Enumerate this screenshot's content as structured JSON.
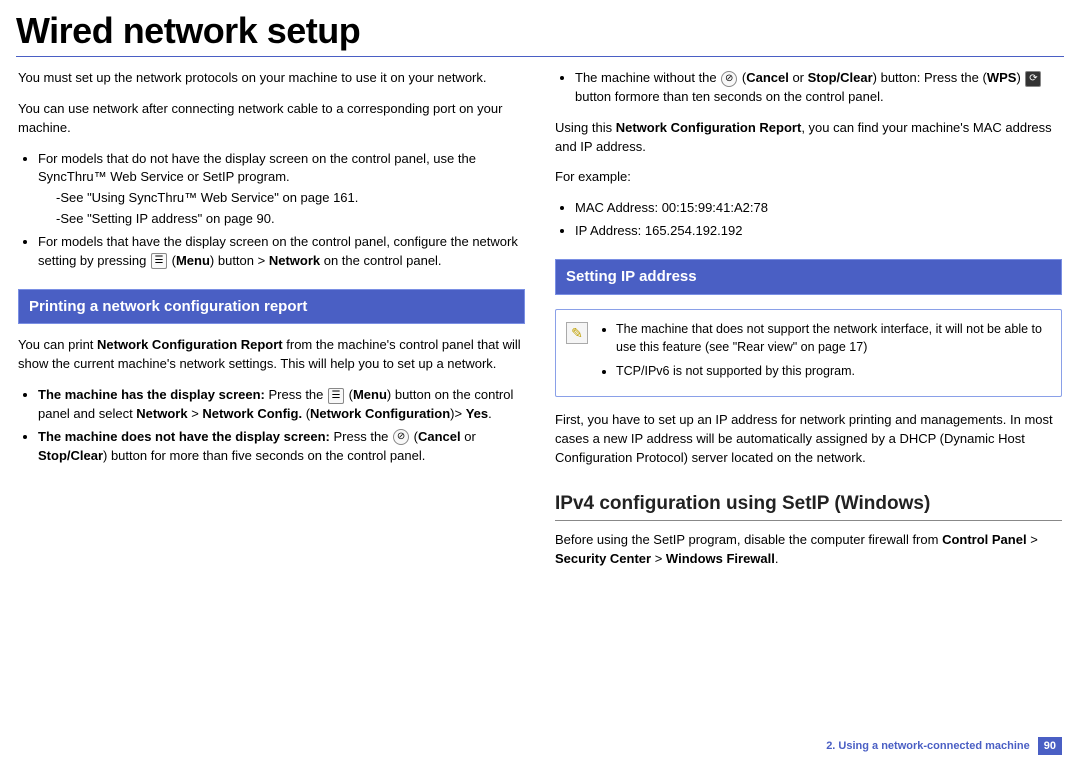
{
  "title": "Wired network setup",
  "left": {
    "intro1": "You must set up the network protocols on your machine to use it on your network.",
    "intro2": "You can use network after connecting network cable to a corresponding port on your machine.",
    "bullet1": "For models that do not have the display screen on the control panel, use the SyncThru™ Web Service or SetIP program.",
    "see1": "-See \"Using SyncThru™ Web Service\" on page 161.",
    "see2": "-See \"Setting IP address\" on page 90.",
    "bullet2a": "For models that have the display screen on the control panel, configure the network setting by pressing ",
    "bullet2b": "Menu",
    "bullet2c": ") button > ",
    "bullet2d": "Network",
    "bullet2e": " on the control panel.",
    "section1": "Printing a network configuration report",
    "p3a": "You can print ",
    "p3b": "Network Configuration Report",
    "p3c": " from the machine's control panel that will show the current machine's network settings. This will help you to set up a network.",
    "li3a1": "The machine has the display screen:",
    "li3a2": " Press the ",
    "li3a3": "Menu",
    "li3a4": ") button on the control panel and select ",
    "li3a5": "Network",
    "li3a6": "Network Config.",
    "li3a7": "Network Configuration",
    "li3a8": "Yes",
    "li3b1": "The machine does not have the display screen:",
    "li3b2": " Press the ",
    "li3b3": "Cancel",
    "li3b4": "Stop/Clear",
    "li3b5": ") button for more than five seconds on the control panel."
  },
  "right": {
    "li1a": "The machine without the ",
    "li1b": "Cancel",
    "li1c": "Stop/Clear",
    "li1d": ") button: Press the (",
    "li1e": "WPS",
    "li1f": " button formore than ten seconds on the control panel.",
    "p2a": "Using this ",
    "p2b": "Network Configuration Report",
    "p2c": ", you can find your machine's MAC address and IP address.",
    "p3": "For example:",
    "mac": "MAC Address: 00:15:99:41:A2:78",
    "ip": "IP Address: 165.254.192.192",
    "section2": "Setting IP address",
    "note1": "The machine that does not support the network interface, it will not be able to use this feature (see \"Rear view\" on page 17)",
    "note2": "TCP/IPv6 is not supported by this program.",
    "p4": "First, you have to set up an IP address for network printing and managements. In most cases a new IP address will be automatically assigned by a DHCP (Dynamic Host Configuration Protocol) server located on the network.",
    "h3": "IPv4 configuration using SetIP (Windows)",
    "p5a": "Before using the SetIP program, disable the computer firewall from ",
    "p5b": "Control Panel",
    "p5c": "Security Center",
    "p5d": "Windows Firewall"
  },
  "footer": {
    "chapter": "2.  Using a network-connected machine",
    "page": "90"
  }
}
